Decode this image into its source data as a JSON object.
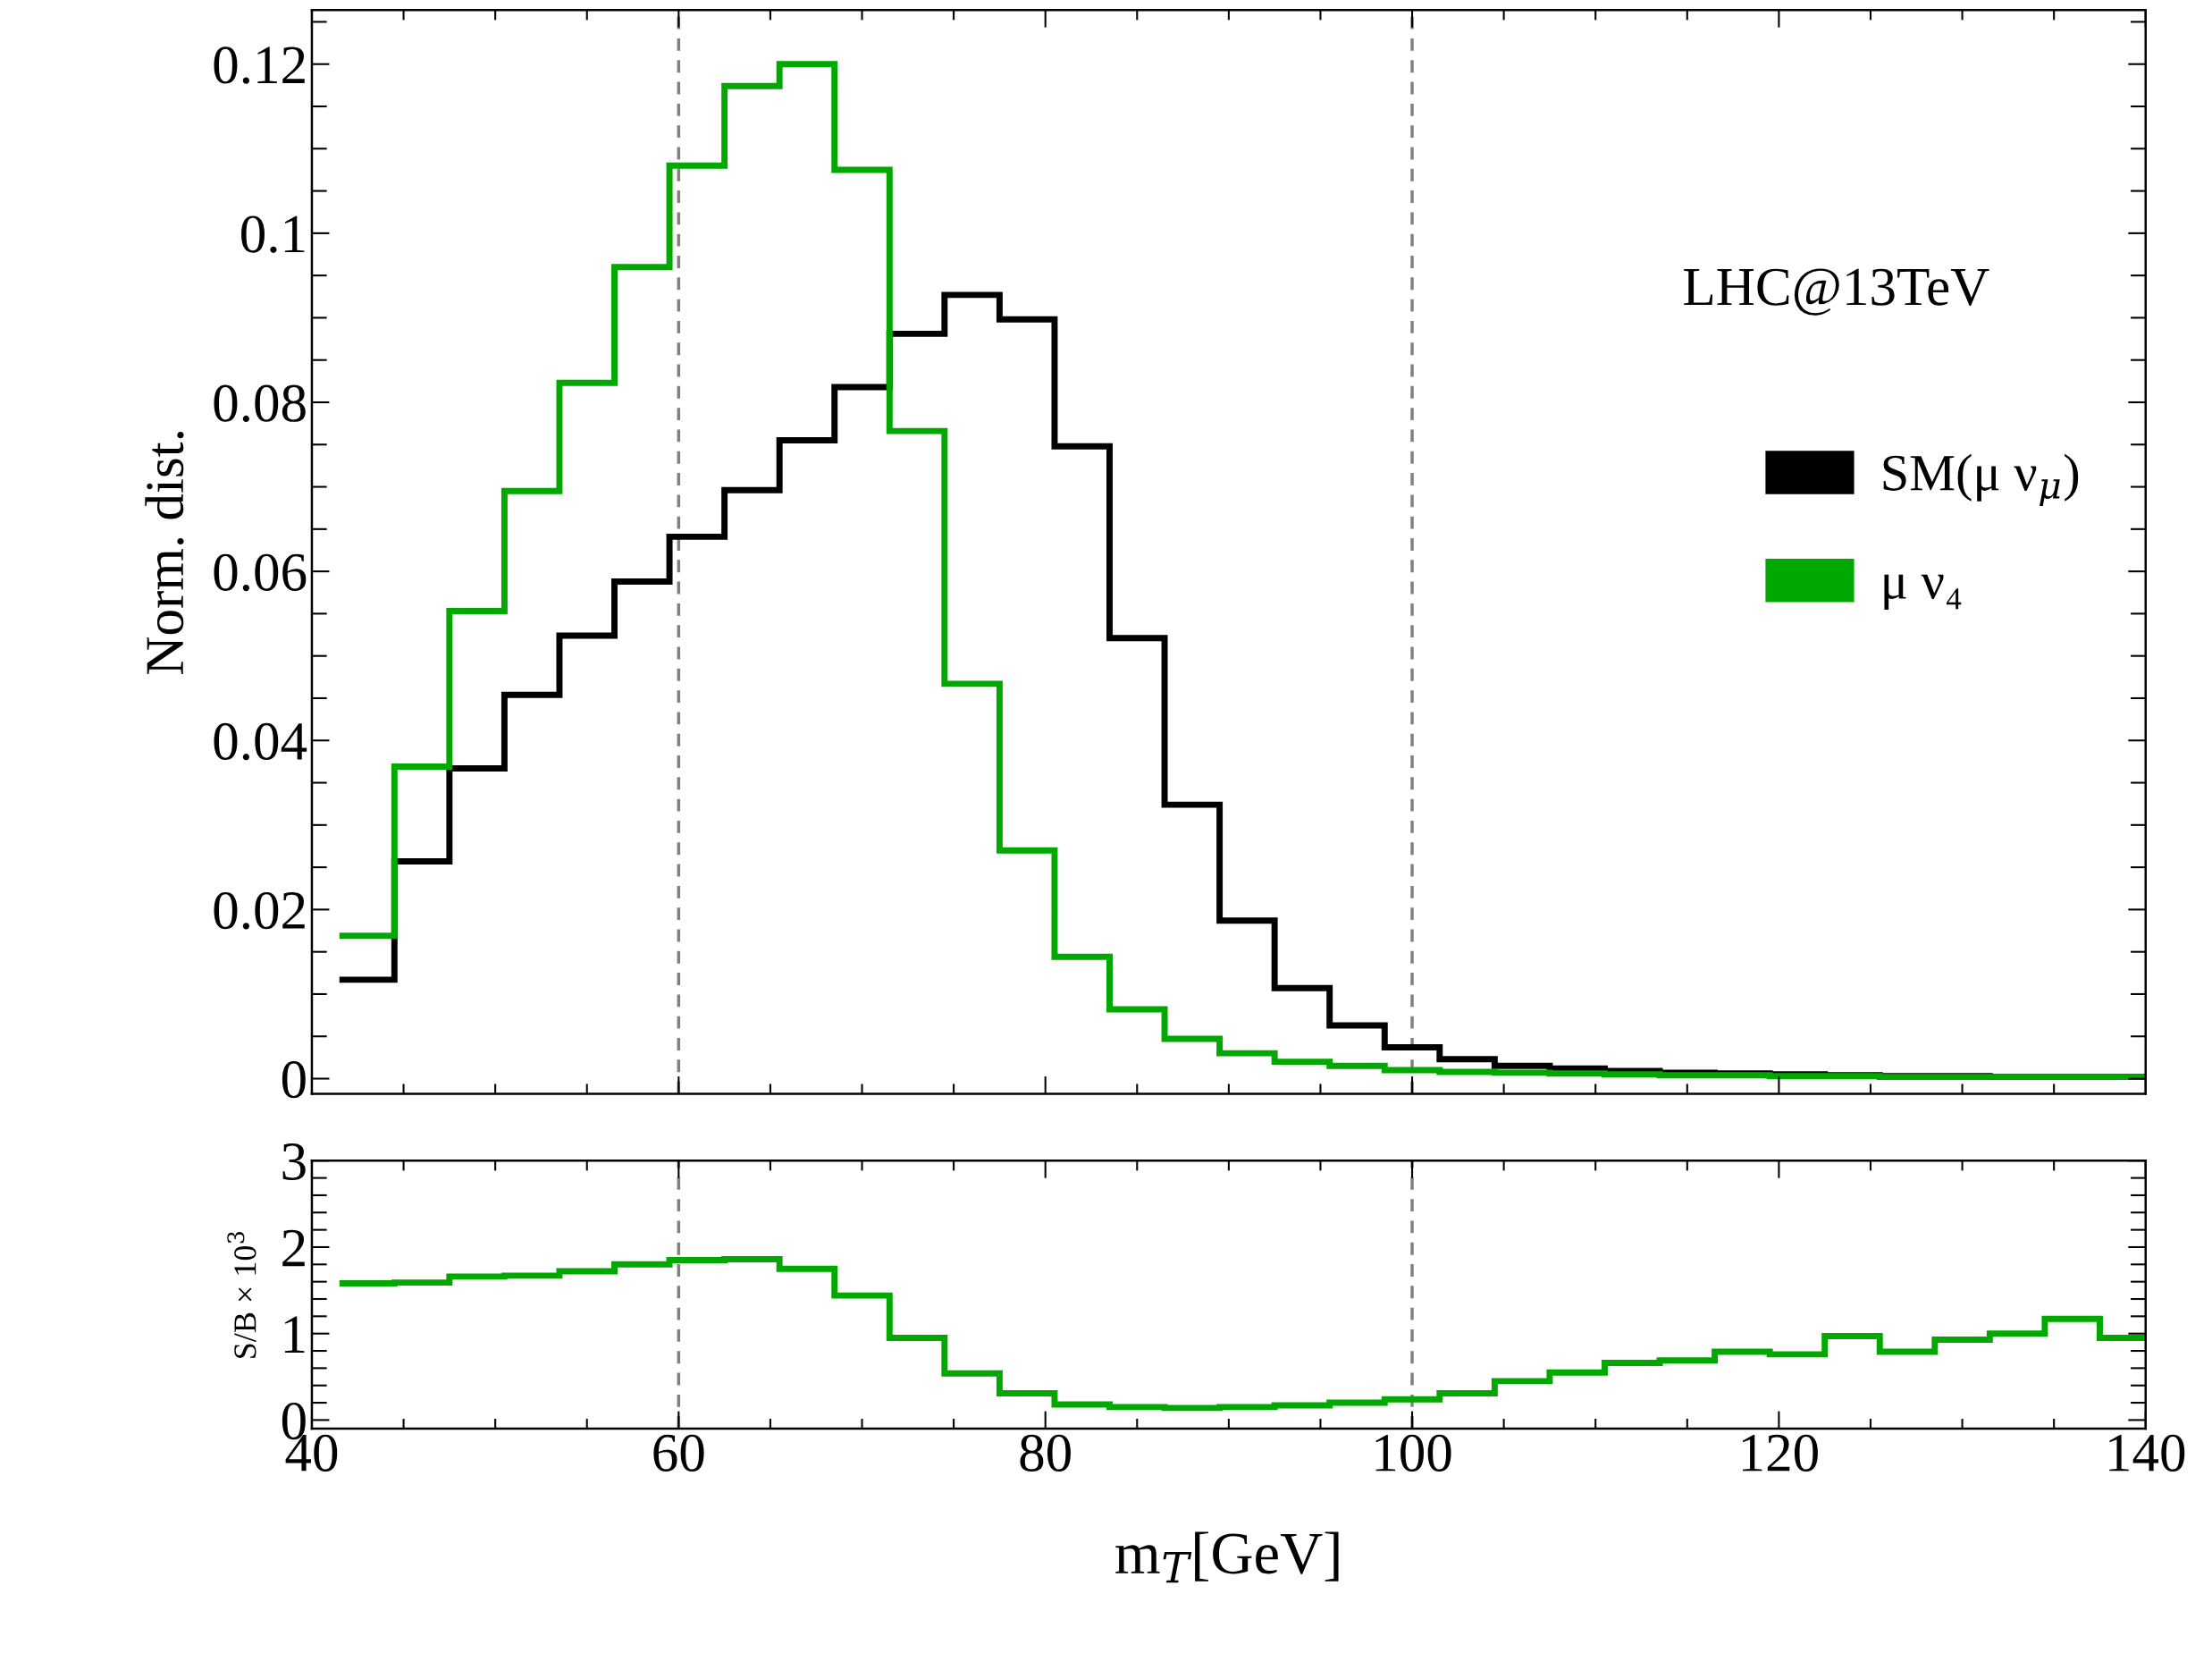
{
  "chart_data": [
    {
      "type": "histogram",
      "ylabel": "Norm. dist.",
      "bins": [
        41.5,
        44.5,
        47.5,
        50.5,
        53.5,
        56.5,
        59.5,
        62.5,
        65.5,
        68.5,
        71.5,
        74.5,
        77.5,
        80.5,
        83.5,
        86.5,
        89.5,
        92.5,
        95.5,
        98.5,
        101.5,
        104.5,
        107.5,
        110.5,
        113.5,
        116.5,
        119.5,
        122.5,
        125.5,
        128.5,
        131.5,
        134.5,
        137.5,
        140
      ],
      "series": [
        {
          "name": "SM(μ ν$_{μ}$)",
          "color": "#000000",
          "values": [
            0.0117,
            0.0257,
            0.0367,
            0.0454,
            0.0524,
            0.0588,
            0.0641,
            0.0696,
            0.0755,
            0.0818,
            0.0881,
            0.0927,
            0.0898,
            0.0748,
            0.0521,
            0.0324,
            0.0187,
            0.0107,
            0.0063,
            0.0037,
            0.0023,
            0.0015,
            0.0012,
            0.0009,
            0.0007,
            0.0006,
            0.0005,
            0.0004,
            0.0003,
            0.0003,
            0.0002,
            0.0002,
            0.0002
          ]
        },
        {
          "name": "μ ν₄",
          "color": "#00a800",
          "values": [
            0.0169,
            0.0369,
            0.0553,
            0.0695,
            0.0823,
            0.096,
            0.108,
            0.1174,
            0.12,
            0.1075,
            0.0766,
            0.0467,
            0.027,
            0.0144,
            0.0082,
            0.0047,
            0.003,
            0.002,
            0.0015,
            0.001,
            0.0008,
            0.0007,
            0.0006,
            0.0005,
            0.0004,
            0.0004,
            0.0003,
            0.0003,
            0.0002,
            0.0002,
            0.0002,
            0.0002,
            0.0002
          ]
        }
      ],
      "xlim": [
        40,
        140
      ],
      "ylim": [
        -0.0018,
        0.1264
      ],
      "yticks": [
        0,
        0.02,
        0.04,
        0.06,
        0.08,
        {
          "value": 0.1,
          "label": "0.1"
        },
        0.12
      ],
      "tick_labels": "y",
      "legend": "right",
      "annotations": [
        "LHC@13TeV"
      ],
      "ref_lines": [
        {
          "axis": "x",
          "value": 60,
          "color": "#808080",
          "line_style": "dashed"
        },
        {
          "axis": "x",
          "value": 100,
          "color": "#808080",
          "line_style": "dashed"
        }
      ]
    },
    {
      "type": "histogram",
      "ylabel": "S/B × 10$^{3}$",
      "xlabel": "m$_{T}$[GeV]",
      "bins": [
        41.5,
        44.5,
        47.5,
        50.5,
        53.5,
        56.5,
        59.5,
        62.5,
        65.5,
        68.5,
        71.5,
        74.5,
        77.5,
        80.5,
        83.5,
        86.5,
        89.5,
        92.5,
        95.5,
        98.5,
        101.5,
        104.5,
        107.5,
        110.5,
        113.5,
        116.5,
        119.5,
        122.5,
        125.5,
        128.5,
        131.5,
        134.5,
        137.5,
        140
      ],
      "color": "#00a800",
      "values": [
        1.58,
        1.59,
        1.66,
        1.67,
        1.72,
        1.8,
        1.85,
        1.86,
        1.75,
        1.44,
        0.95,
        0.54,
        0.31,
        0.18,
        0.15,
        0.14,
        0.15,
        0.17,
        0.2,
        0.24,
        0.31,
        0.45,
        0.55,
        0.66,
        0.69,
        0.79,
        0.76,
        0.97,
        0.79,
        0.93,
        1.0,
        1.17,
        0.95
      ],
      "xlim": [
        40,
        140
      ],
      "ylim": [
        -0.1,
        3
      ],
      "xticks": [
        40,
        60,
        80,
        100,
        120,
        140
      ],
      "yticks": [
        0,
        1,
        2,
        3
      ],
      "ref_lines": [
        {
          "axis": "x",
          "value": 60,
          "color": "#808080",
          "line_style": "dashed"
        },
        {
          "axis": "x",
          "value": 100,
          "color": "#808080",
          "line_style": "dashed"
        }
      ]
    }
  ]
}
